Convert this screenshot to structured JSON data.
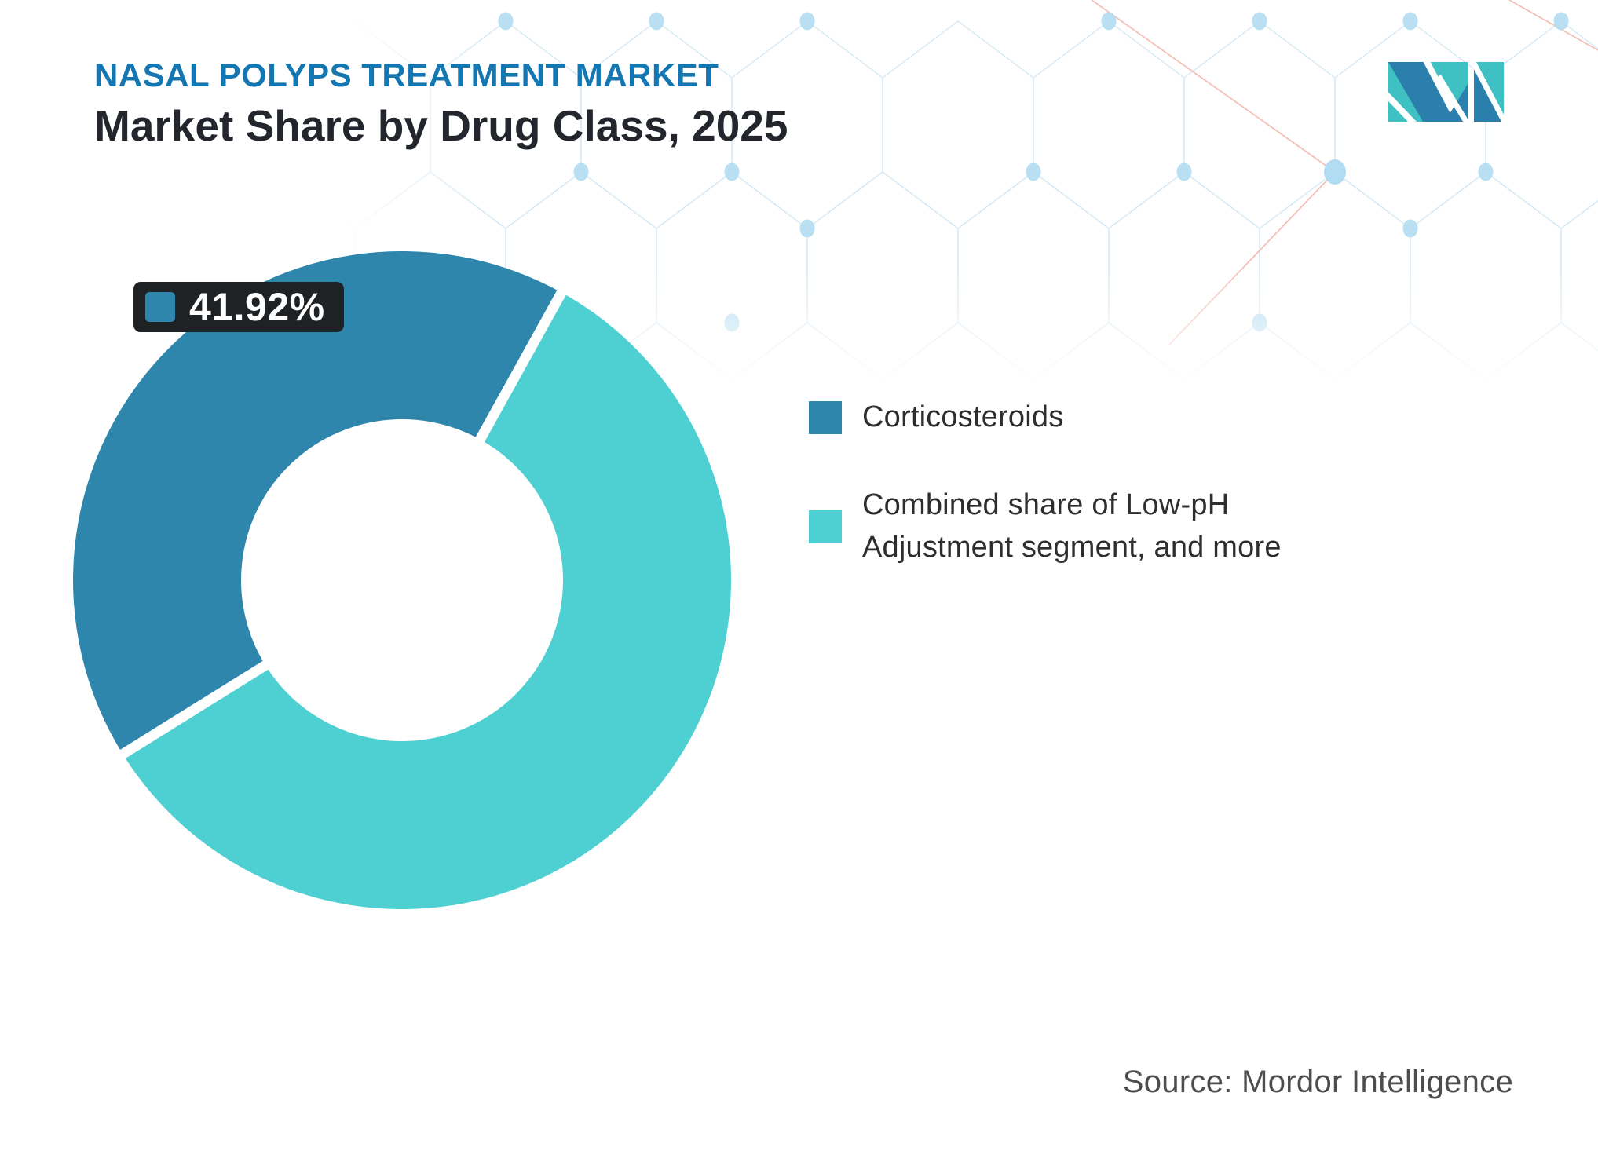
{
  "header": {
    "kicker": "NASAL POLYPS TREATMENT MARKET",
    "title": "Market Share by Drug Class, 2025"
  },
  "chart_data": {
    "type": "pie",
    "subtype": "donut",
    "title": "Market Share by Drug Class, 2025",
    "units": "percent market share",
    "slices": [
      {
        "label": "Corticosteroids",
        "value": 41.92,
        "color": "#2E86AC"
      },
      {
        "label": "Combined share of Low-pH Adjustment segment, and more",
        "value": 58.08,
        "color": "#4ED0D2"
      }
    ],
    "data_label": {
      "text": "41.92%",
      "series": "Corticosteroids"
    },
    "donut_hole_ratio": 0.49,
    "rotation_deg": -121.91,
    "separator_color": "#FFFFFF",
    "legend_position": "right",
    "gridlines": false
  },
  "callout": {
    "value": "41.92%",
    "swatch_color": "#2E86AC"
  },
  "legend": {
    "items": [
      {
        "label": "Corticosteroids",
        "color": "#2E86AC"
      },
      {
        "label": "Combined share of Low-pH Adjustment segment, and more",
        "color": "#4ED0D2"
      }
    ]
  },
  "footer": {
    "source": "Source: Mordor Intelligence"
  },
  "brand": {
    "logo_blue": "#2B7FAD",
    "logo_teal": "#3FC0C3"
  },
  "colors": {
    "kicker_text": "#1577B2",
    "title_text": "#23262C",
    "callout_bg": "#1F2225",
    "legend_text": "#2E2E2E",
    "source_text": "#4D4D4D",
    "pattern_line": "#D7E9F5",
    "pattern_dot": "#A9D9F0",
    "pattern_accent": "#F2B1A8"
  }
}
